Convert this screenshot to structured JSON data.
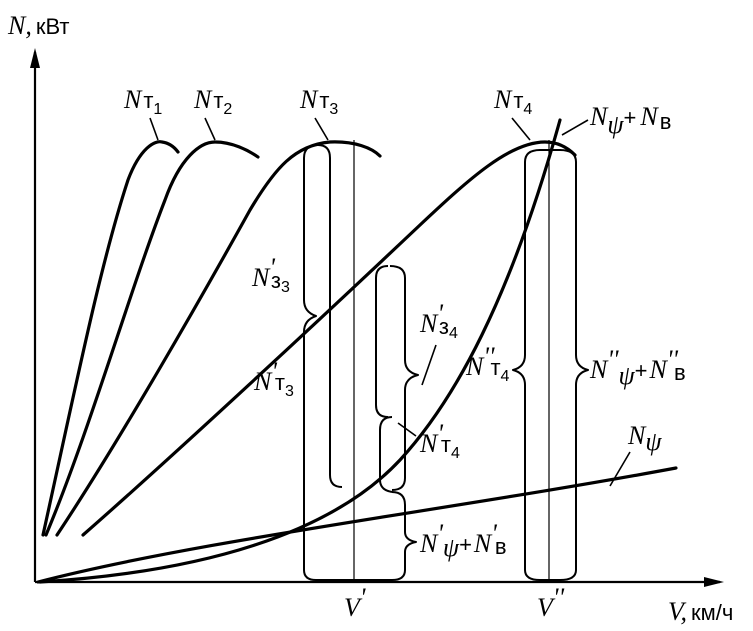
{
  "axes": {
    "y_symbol": "N,",
    "y_unit": "кВт",
    "x_symbol": "V,",
    "x_unit": "км/ч"
  },
  "x_marks": {
    "v1": "V",
    "v1_prime": "'",
    "v2": "V",
    "v2_prime": "''"
  },
  "labels": {
    "nt1": {
      "sym": "N",
      "letter": "т",
      "idx": "1"
    },
    "nt2": {
      "sym": "N",
      "letter": "т",
      "idx": "2"
    },
    "nt3": {
      "sym": "N",
      "letter": "т",
      "idx": "3"
    },
    "nt4": {
      "sym": "N",
      "letter": "т",
      "idx": "4"
    },
    "npsi_nv": {
      "sym1": "N",
      "psi": "ψ",
      "plus": "+",
      "sym2": "N",
      "v": "в"
    },
    "nz3": {
      "sym": "N",
      "prime": "'",
      "letter": "з",
      "idx": "3"
    },
    "nz4": {
      "sym": "N",
      "prime": "'",
      "letter": "з",
      "idx": "4"
    },
    "nt3p": {
      "sym": "N",
      "prime": "'",
      "letter": "т",
      "idx": "3"
    },
    "nt4p": {
      "sym": "N",
      "prime": "'",
      "letter": "т",
      "idx": "4"
    },
    "nt4pp": {
      "sym": "N",
      "prime": "''",
      "letter": "т",
      "idx": "4"
    },
    "npp_sum": {
      "sym1": "N",
      "prime1": "''",
      "psi": "ψ",
      "plus": "+",
      "sym2": "N",
      "prime2": "''",
      "v": "в"
    },
    "npsi": {
      "sym": "N",
      "psi": "ψ"
    },
    "np_sum": {
      "sym1": "N",
      "prime1": "'",
      "psi": "ψ",
      "plus": "+",
      "sym2": "N",
      "prime2": "'",
      "v": "в"
    }
  }
}
